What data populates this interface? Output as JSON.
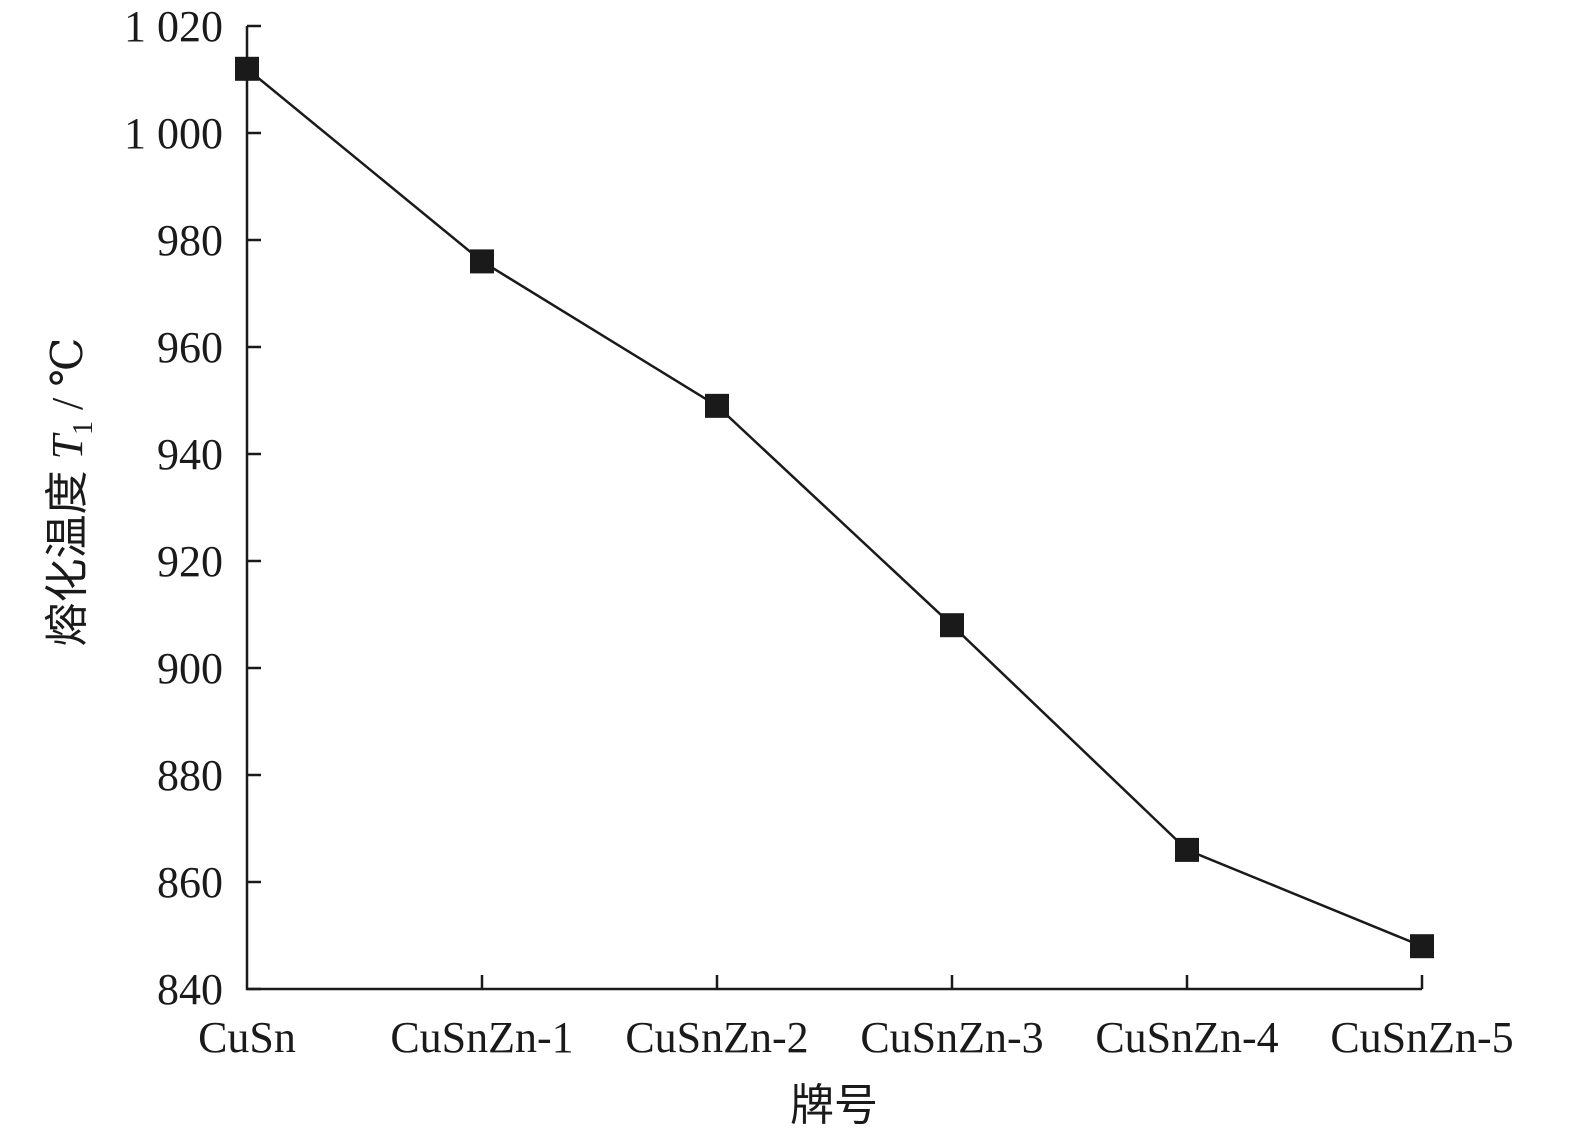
{
  "chart_data": {
    "type": "line",
    "categories": [
      "CuSn",
      "CuSnZn-1",
      "CuSnZn-2",
      "CuSnZn-3",
      "CuSnZn-4",
      "CuSnZn-5"
    ],
    "series": [
      {
        "values": [
          1012,
          976,
          949,
          908,
          866,
          848
        ]
      }
    ],
    "y_ticks": [
      840,
      860,
      880,
      900,
      920,
      940,
      960,
      980,
      1000,
      1020
    ],
    "y_tick_labels": [
      "840",
      "860",
      "880",
      "900",
      "920",
      "940",
      "960",
      "980",
      "1 000",
      "1 020"
    ],
    "ylim": [
      840,
      1020
    ],
    "xlabel": "牌号",
    "ylabel": {
      "main": "熔化温度 ",
      "symbol": "T",
      "subscript": "1",
      "unit": " / ℃"
    },
    "marker": "square",
    "grid": false,
    "legend": "none",
    "color": "#1a1a1a"
  }
}
